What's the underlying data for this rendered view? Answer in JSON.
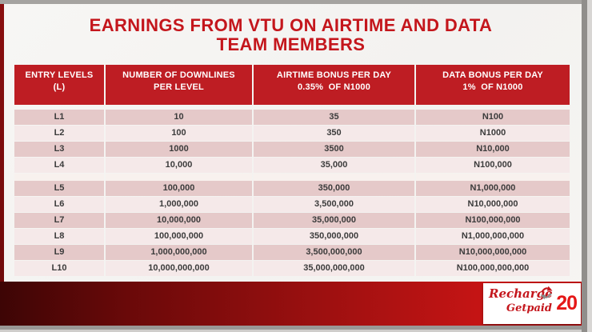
{
  "slide": {
    "title_line1": "EARNINGS FROM VTU ON AIRTIME AND DATA",
    "title_line2": "TEAM MEMBERS",
    "page_number": "20",
    "logo": {
      "word1": "Recharge",
      "word2": "Getpaid",
      "icon": "swirl-arrows-icon"
    }
  },
  "table": {
    "headers": [
      {
        "line1": "ENTRY LEVELS",
        "line2": "(L)"
      },
      {
        "line1": "NUMBER OF DOWNLINES",
        "line2": "PER LEVEL"
      },
      {
        "line1": "AIRTIME BONUS PER DAY",
        "line2": "0.35%  OF N1000"
      },
      {
        "line1": "DATA BONUS PER DAY",
        "line2": "1%  OF N1000"
      }
    ],
    "rows": [
      {
        "level": "L1",
        "downlines": "10",
        "airtime": "35",
        "data": "N100"
      },
      {
        "level": "L2",
        "downlines": "100",
        "airtime": "350",
        "data": "N1000"
      },
      {
        "level": "L3",
        "downlines": "1000",
        "airtime": "3500",
        "data": "N10,000"
      },
      {
        "level": "L4",
        "downlines": "10,000",
        "airtime": "35,000",
        "data": "N100,000"
      },
      {
        "level": "L5",
        "downlines": "100,000",
        "airtime": "350,000",
        "data": "N1,000,000"
      },
      {
        "level": "L6",
        "downlines": "1,000,000",
        "airtime": "3,500,000",
        "data": "N10,000,000"
      },
      {
        "level": "L7",
        "downlines": "10,000,000",
        "airtime": "35,000,000",
        "data": "N100,000,000"
      },
      {
        "level": "L8",
        "downlines": "100,000,000",
        "airtime": "350,000,000",
        "data": "N1,000,000,000"
      },
      {
        "level": "L9",
        "downlines": "1,000,000,000",
        "airtime": "3,500,000,000",
        "data": "N10,000,000,000"
      },
      {
        "level": "L10",
        "downlines": "10,000,000,000",
        "airtime": "35,000,000,000",
        "data": "N100,000,000,000"
      }
    ],
    "gap_after_index": 3
  },
  "colors": {
    "title_red": "#c4161c",
    "header_red": "#be1d23",
    "row_dark": "#e5c9c9",
    "row_light": "#f5e9e9",
    "band_dark": "#3d0505",
    "band_bright": "#c41414",
    "logo_red": "#c4161c",
    "page_number_red": "#e51717"
  }
}
